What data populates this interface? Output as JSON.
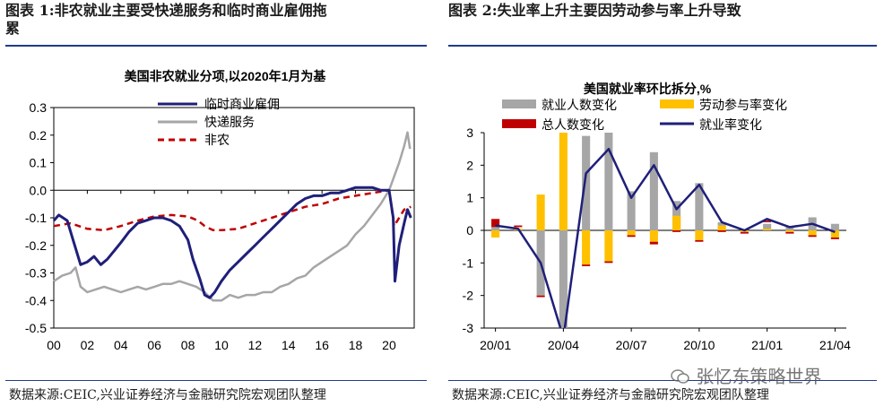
{
  "left_header": {
    "line1": "图表 1:非农就业主要受快递服务和临时商业雇佣拖",
    "line2": "累"
  },
  "right_header": {
    "text": "图表 2:失业率上升主要因劳动参与率上升导致"
  },
  "source_left": "数据来源:CEIC,兴业证券经济与金融研究院宏观团队整理",
  "source_right": "数据来源:CEIC,兴业证券经济与金融研究院宏观团队整理",
  "watermark": "张忆东策略世界",
  "colors": {
    "temp": "#1f1f7a",
    "delivery": "#a6a6a6",
    "nonfarm": "#c00000",
    "rule": "#1f3c88",
    "emp": "#a6a6a6",
    "lfpr": "#ffc000",
    "pop": "#c00000",
    "rate": "#1f1f7a"
  },
  "chart_data": [
    {
      "type": "line",
      "title": "美国非农就业分项,以2020年1月为基",
      "xlabel": "",
      "ylabel": "",
      "xlim": [
        2000,
        2021.5
      ],
      "ylim": [
        -0.5,
        0.3
      ],
      "xticks": [
        2000,
        2002,
        2004,
        2006,
        2008,
        2010,
        2012,
        2014,
        2016,
        2018,
        2020
      ],
      "xtick_labels": [
        "00",
        "02",
        "04",
        "06",
        "08",
        "10",
        "12",
        "14",
        "16",
        "18",
        "20"
      ],
      "yticks": [
        0.3,
        0.2,
        0.1,
        0.0,
        -0.1,
        -0.2,
        -0.3,
        -0.4,
        -0.5
      ],
      "ytick_labels": [
        "0.3",
        "0.2",
        "0.1",
        "0.0",
        "-0.1",
        "-0.2",
        "-0.3",
        "-0.4",
        "-0.5"
      ],
      "legend": [
        "临时商业雇佣",
        "快递服务",
        "非农"
      ],
      "series": [
        {
          "name": "临时商业雇佣",
          "style": "solid",
          "x": [
            2000,
            2000.3,
            2000.8,
            2001.2,
            2001.6,
            2002,
            2002.4,
            2002.8,
            2003.2,
            2003.6,
            2004,
            2004.5,
            2005,
            2005.5,
            2006,
            2006.5,
            2007,
            2007.5,
            2008,
            2008.3,
            2008.7,
            2009,
            2009.3,
            2009.6,
            2010,
            2010.5,
            2011,
            2011.5,
            2012,
            2012.5,
            2013,
            2013.5,
            2014,
            2014.5,
            2015,
            2015.5,
            2016,
            2016.5,
            2017,
            2017.5,
            2018,
            2018.5,
            2019,
            2019.5,
            2020,
            2020.25,
            2020.35,
            2020.6,
            2020.9,
            2021.1,
            2021.3
          ],
          "y": [
            -0.11,
            -0.09,
            -0.11,
            -0.19,
            -0.27,
            -0.26,
            -0.24,
            -0.27,
            -0.25,
            -0.22,
            -0.19,
            -0.15,
            -0.12,
            -0.11,
            -0.1,
            -0.1,
            -0.11,
            -0.13,
            -0.18,
            -0.25,
            -0.32,
            -0.38,
            -0.39,
            -0.37,
            -0.33,
            -0.29,
            -0.26,
            -0.23,
            -0.2,
            -0.17,
            -0.14,
            -0.11,
            -0.08,
            -0.05,
            -0.03,
            -0.02,
            -0.02,
            -0.01,
            -0.01,
            0.0,
            0.01,
            0.01,
            0.01,
            0.0,
            0.0,
            -0.1,
            -0.33,
            -0.2,
            -0.12,
            -0.07,
            -0.1
          ]
        },
        {
          "name": "快递服务",
          "style": "solid",
          "x": [
            2000,
            2000.5,
            2001,
            2001.3,
            2001.6,
            2002,
            2002.5,
            2003,
            2003.5,
            2004,
            2004.5,
            2005,
            2005.5,
            2006,
            2006.5,
            2007,
            2007.5,
            2008,
            2008.5,
            2009,
            2009.5,
            2010,
            2010.5,
            2011,
            2011.5,
            2012,
            2012.5,
            2013,
            2013.5,
            2014,
            2014.5,
            2015,
            2015.5,
            2016,
            2016.5,
            2017,
            2017.5,
            2018,
            2018.5,
            2019,
            2019.5,
            2020,
            2020.3,
            2020.6,
            2020.9,
            2021.1,
            2021.25
          ],
          "y": [
            -0.33,
            -0.31,
            -0.3,
            -0.28,
            -0.35,
            -0.37,
            -0.36,
            -0.35,
            -0.36,
            -0.37,
            -0.36,
            -0.35,
            -0.36,
            -0.35,
            -0.34,
            -0.34,
            -0.33,
            -0.34,
            -0.35,
            -0.37,
            -0.4,
            -0.4,
            -0.38,
            -0.39,
            -0.38,
            -0.38,
            -0.37,
            -0.37,
            -0.35,
            -0.34,
            -0.32,
            -0.31,
            -0.28,
            -0.26,
            -0.24,
            -0.22,
            -0.2,
            -0.16,
            -0.13,
            -0.09,
            -0.05,
            0.0,
            0.05,
            0.1,
            0.16,
            0.21,
            0.15
          ]
        },
        {
          "name": "非农",
          "style": "dashed",
          "x": [
            2000,
            2001,
            2002,
            2003,
            2004,
            2005,
            2006,
            2007,
            2008,
            2008.6,
            2009,
            2009.5,
            2010,
            2011,
            2012,
            2013,
            2014,
            2015,
            2016,
            2017,
            2018,
            2019,
            2020,
            2020.3,
            2020.5,
            2020.9,
            2021.3
          ],
          "y": [
            -0.13,
            -0.12,
            -0.14,
            -0.145,
            -0.13,
            -0.11,
            -0.095,
            -0.09,
            -0.095,
            -0.11,
            -0.13,
            -0.145,
            -0.145,
            -0.14,
            -0.12,
            -0.1,
            -0.08,
            -0.06,
            -0.05,
            -0.03,
            -0.02,
            -0.01,
            0.0,
            -0.13,
            -0.11,
            -0.07,
            -0.06
          ]
        }
      ]
    },
    {
      "type": "bar",
      "title": "美国就业率环比拆分,%",
      "xlabel": "",
      "ylabel": "",
      "ylim": [
        -3,
        3
      ],
      "yticks": [
        3,
        2,
        1,
        0,
        -1,
        -2,
        -3
      ],
      "ytick_labels": [
        "3",
        "2",
        "1",
        "0",
        "-1",
        "-2",
        "-3"
      ],
      "categories": [
        "20/01",
        "20/02",
        "20/03",
        "20/04",
        "20/05",
        "20/06",
        "20/07",
        "20/08",
        "20/09",
        "20/10",
        "20/11",
        "20/12",
        "21/01",
        "21/02",
        "21/03",
        "21/04"
      ],
      "xtick_labels": [
        "20/01",
        "20/04",
        "20/07",
        "20/10",
        "21/01",
        "21/04"
      ],
      "xtick_index": [
        0,
        3,
        6,
        9,
        12,
        15
      ],
      "legend": [
        "就业人数变化",
        "劳动参与率变化",
        "总人数变化",
        "就业率变化"
      ],
      "series": [
        {
          "name": "就业人数变化",
          "kind": "bar",
          "values": [
            0.1,
            0.05,
            -2.0,
            -3.3,
            2.9,
            3.0,
            1.2,
            2.4,
            0.9,
            1.45,
            0.25,
            0.0,
            0.2,
            0.1,
            0.4,
            0.2
          ]
        },
        {
          "name": "劳动参与率变化",
          "kind": "bar",
          "values": [
            -0.22,
            0.05,
            1.1,
            3.0,
            -1.05,
            -0.95,
            -0.15,
            -0.35,
            0.45,
            -0.3,
            0.15,
            -0.05,
            0.05,
            -0.05,
            -0.15,
            -0.22
          ]
        },
        {
          "name": "总人数变化",
          "kind": "bar",
          "values": [
            0.25,
            0.05,
            -0.05,
            -0.05,
            -0.05,
            -0.05,
            -0.05,
            -0.08,
            -0.05,
            -0.05,
            -0.05,
            -0.05,
            0.05,
            -0.05,
            -0.05,
            -0.05
          ]
        },
        {
          "name": "就业率变化",
          "kind": "line",
          "values": [
            0.15,
            0.05,
            -1.0,
            -3.3,
            1.75,
            2.5,
            1.0,
            2.0,
            0.65,
            1.4,
            0.25,
            0.0,
            0.35,
            0.1,
            0.2,
            -0.05
          ]
        }
      ]
    }
  ]
}
